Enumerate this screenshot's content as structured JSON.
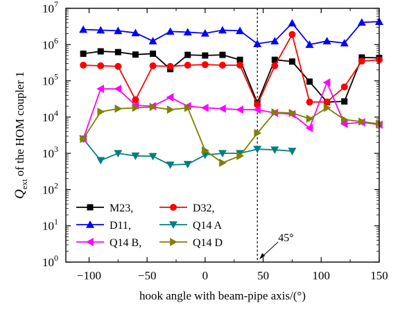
{
  "chart_data": {
    "type": "line",
    "title": "",
    "xlabel": "hook angle with beam-pipe axis/(°)",
    "ylabel": {
      "main": "Q",
      "subscript": "ext",
      "rest": " of the HOM coupler 1"
    },
    "xlim": [
      -120,
      150
    ],
    "ylim": [
      1,
      10000000
    ],
    "yscale": "log",
    "grid": false,
    "xticks": [
      {
        "value": -100,
        "label": "−100"
      },
      {
        "value": -50,
        "label": "−50"
      },
      {
        "value": 0,
        "label": "0"
      },
      {
        "value": 50,
        "label": "50"
      },
      {
        "value": 100,
        "label": "100"
      },
      {
        "value": 150,
        "label": "150"
      }
    ],
    "yticks": [
      {
        "exp": 0,
        "base": "10",
        "sup": "0"
      },
      {
        "exp": 1,
        "base": "10",
        "sup": "1"
      },
      {
        "exp": 2,
        "base": "10",
        "sup": "2"
      },
      {
        "exp": 3,
        "base": "10",
        "sup": "3"
      },
      {
        "exp": 4,
        "base": "10",
        "sup": "4"
      },
      {
        "exp": 5,
        "base": "10",
        "sup": "5"
      },
      {
        "exp": 6,
        "base": "10",
        "sup": "6"
      },
      {
        "exp": 7,
        "base": "10",
        "sup": "7"
      }
    ],
    "vline": {
      "x": 45,
      "label": "45°"
    },
    "legend_position": "bottom-left",
    "series": [
      {
        "name": "M23,",
        "color": "#000000",
        "marker": "square",
        "x": [
          -105,
          -90,
          -75,
          -60,
          -45,
          -30,
          -15,
          0,
          15,
          30,
          45,
          60,
          75,
          90,
          105,
          120,
          135,
          150
        ],
        "y": [
          560000,
          650000,
          620000,
          530000,
          560000,
          210000,
          520000,
          500000,
          520000,
          380000,
          25000,
          380000,
          340000,
          95000,
          26000,
          27000,
          440000,
          430000
        ]
      },
      {
        "name": "D32,",
        "color": "#ff0000",
        "marker": "circle",
        "x": [
          -105,
          -90,
          -75,
          -60,
          -45,
          -30,
          -15,
          0,
          15,
          30,
          45,
          60,
          75,
          90,
          105,
          120,
          135,
          150
        ],
        "y": [
          270000,
          260000,
          250000,
          30000,
          260000,
          250000,
          270000,
          280000,
          270000,
          270000,
          22000,
          260000,
          1900000,
          26000,
          26000,
          68000,
          350000,
          380000
        ]
      },
      {
        "name": "D11,",
        "color": "#0000ff",
        "marker": "triangle-up",
        "x": [
          -105,
          -90,
          -75,
          -60,
          -45,
          -30,
          -15,
          0,
          15,
          30,
          45,
          60,
          75,
          90,
          105,
          120,
          135,
          150
        ],
        "y": [
          2600000,
          2500000,
          2400000,
          2100000,
          1250000,
          2300000,
          2200000,
          2050000,
          2500000,
          2400000,
          1050000,
          1250000,
          3900000,
          1000000,
          1250000,
          1100000,
          4100000,
          4300000
        ]
      },
      {
        "name": "Q14 A",
        "color": "#008080",
        "marker": "triangle-down",
        "x": [
          -105,
          -90,
          -75,
          -60,
          -45,
          -30,
          -15,
          0,
          15,
          30,
          45,
          60,
          75
        ],
        "y": [
          2500,
          640,
          1000,
          850,
          830,
          480,
          500,
          900,
          1000,
          1000,
          1300,
          1250,
          1150
        ]
      },
      {
        "name": "Q14 B,",
        "color": "#ff00ff",
        "marker": "triangle-left",
        "x": [
          -105,
          -90,
          -75,
          -60,
          -45,
          -30,
          -15,
          0,
          15,
          30,
          45,
          60,
          75,
          90,
          105,
          120,
          135,
          150
        ],
        "y": [
          2500,
          60000,
          60000,
          21000,
          20000,
          35000,
          20000,
          18000,
          17000,
          16000,
          16000,
          13000,
          12000,
          5000,
          90000,
          6500,
          7200,
          6200
        ]
      },
      {
        "name": "Q14 D",
        "color": "#808000",
        "marker": "triangle-right",
        "x": [
          -105,
          -90,
          -75,
          -60,
          -45,
          -30,
          -15,
          0,
          15,
          30,
          45,
          60,
          75,
          90,
          105,
          120,
          135,
          150
        ],
        "y": [
          2500,
          14000,
          17000,
          18000,
          19000,
          16000,
          18000,
          1200,
          550,
          850,
          3600,
          13500,
          13000,
          9000,
          18000,
          8500,
          7500,
          6500
        ]
      }
    ]
  }
}
